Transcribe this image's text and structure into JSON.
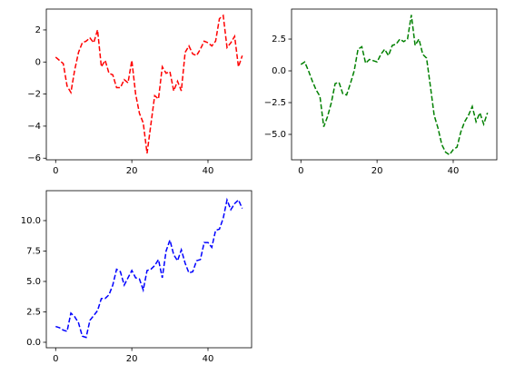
{
  "chart_data": [
    {
      "type": "line",
      "linestyle": "dashed",
      "x": [
        0,
        1,
        2,
        3,
        4,
        5,
        6,
        7,
        8,
        9,
        10,
        11,
        12,
        13,
        14,
        15,
        16,
        17,
        18,
        19,
        20,
        21,
        22,
        23,
        24,
        25,
        26,
        27,
        28,
        29,
        30,
        31,
        32,
        33,
        34,
        35,
        36,
        37,
        38,
        39,
        40,
        41,
        42,
        43,
        44,
        45,
        46,
        47,
        48,
        49
      ],
      "series": [
        {
          "color": "#ff0000",
          "values": [
            0.3,
            0.1,
            -0.1,
            -1.5,
            -1.9,
            -0.5,
            0.6,
            1.2,
            1.3,
            1.5,
            1.2,
            2.0,
            -0.3,
            0.1,
            -0.7,
            -0.8,
            -1.6,
            -1.6,
            -1.1,
            -1.3,
            0.1,
            -2.0,
            -3.2,
            -3.8,
            -5.7,
            -3.9,
            -2.1,
            -2.3,
            -0.3,
            -0.7,
            -0.6,
            -1.8,
            -1.2,
            -1.8,
            0.6,
            1.0,
            0.5,
            0.4,
            0.8,
            1.3,
            1.2,
            1.0,
            1.3,
            2.7,
            2.9,
            0.9,
            1.2,
            1.6,
            -0.3,
            0.4
          ]
        }
      ],
      "xlim": [
        -2.45,
        51.45
      ],
      "xticks": [
        0,
        20,
        40
      ],
      "ylim": [
        -6.1,
        3.3
      ],
      "yticks": [
        {
          "value": -6,
          "label": "−6"
        },
        {
          "value": -4,
          "label": "−4"
        },
        {
          "value": -2,
          "label": "−2"
        },
        0,
        2
      ]
    },
    {
      "type": "line",
      "linestyle": "dashed",
      "x": [
        0,
        1,
        2,
        3,
        4,
        5,
        6,
        7,
        8,
        9,
        10,
        11,
        12,
        13,
        14,
        15,
        16,
        17,
        18,
        19,
        20,
        21,
        22,
        23,
        24,
        25,
        26,
        27,
        28,
        29,
        30,
        31,
        32,
        33,
        34,
        35,
        36,
        37,
        38,
        39,
        40,
        41,
        42,
        43,
        44,
        45,
        46,
        47,
        48,
        49
      ],
      "series": [
        {
          "color": "#008000",
          "values": [
            0.5,
            0.7,
            0,
            -0.8,
            -1.5,
            -2,
            -4.4,
            -3.6,
            -2.5,
            -1,
            -0.9,
            -1.8,
            -1.9,
            -1,
            0,
            1.7,
            1.9,
            0.6,
            0.9,
            0.8,
            0.7,
            1.3,
            1.7,
            1.2,
            2.0,
            2.1,
            2.5,
            2.3,
            2.5,
            4.4,
            2.0,
            2.5,
            1.3,
            1.0,
            -1.2,
            -3.5,
            -4.5,
            -5.8,
            -6.4,
            -6.6,
            -6.2,
            -6.0,
            -4.8,
            -4,
            -3.5,
            -2.8,
            -4,
            -3.3,
            -4.2,
            -3.3
          ]
        }
      ],
      "xlim": [
        -2.45,
        51.45
      ],
      "xticks": [
        0,
        20,
        40
      ],
      "ylim": [
        -7.0,
        4.86
      ],
      "yticks": [
        {
          "value": -5,
          "label": "−5.0"
        },
        {
          "value": -2.5,
          "label": "−2.5"
        },
        {
          "value": 0,
          "label": "0.0"
        },
        2.5
      ]
    },
    {
      "type": "line",
      "linestyle": "dashed",
      "x": [
        0,
        1,
        2,
        3,
        4,
        5,
        6,
        7,
        8,
        9,
        10,
        11,
        12,
        13,
        14,
        15,
        16,
        17,
        18,
        19,
        20,
        21,
        22,
        23,
        24,
        25,
        26,
        27,
        28,
        29,
        30,
        31,
        32,
        33,
        34,
        35,
        36,
        37,
        38,
        39,
        40,
        41,
        42,
        43,
        44,
        45,
        46,
        47,
        48,
        49
      ],
      "series": [
        {
          "color": "#0000ff",
          "values": [
            1.3,
            1.2,
            1.0,
            0.9,
            2.4,
            2.1,
            1.6,
            0.5,
            0.4,
            1.8,
            2.2,
            2.6,
            3.6,
            3.6,
            3.9,
            4.7,
            6.0,
            5.8,
            4.7,
            5.3,
            5.9,
            5.3,
            5.2,
            4.3,
            5.9,
            6.0,
            6.3,
            6.8,
            5.3,
            7.5,
            8.4,
            7.2,
            6.7,
            7.6,
            6.5,
            5.7,
            5.8,
            6.7,
            6.8,
            8.2,
            8.2,
            7.8,
            9.2,
            9.3,
            10.2,
            11.7,
            10.9,
            11.4,
            11.7,
            11.0
          ]
        }
      ],
      "xlim": [
        -2.45,
        51.45
      ],
      "xticks": [
        0,
        20,
        40
      ],
      "ylim": [
        -0.45,
        12.46
      ],
      "yticks": [
        {
          "value": 0,
          "label": "0.0"
        },
        2.5,
        {
          "value": 5,
          "label": "5.0"
        },
        7.5,
        {
          "value": 10,
          "label": "10.0"
        }
      ]
    }
  ]
}
